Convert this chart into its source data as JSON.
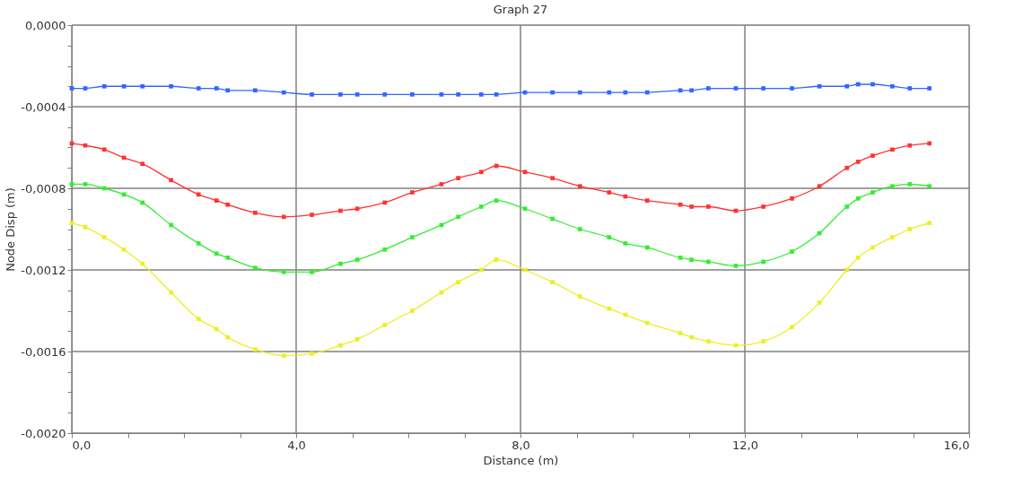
{
  "chart_data": {
    "type": "line",
    "title": "Graph  27",
    "xlabel": "Distance (m)",
    "ylabel": "Node Disp  (m)",
    "x": [
      0,
      0.24,
      0.58,
      0.93,
      1.26,
      1.77,
      2.26,
      2.58,
      2.78,
      3.27,
      3.78,
      4.28,
      4.79,
      5.09,
      5.58,
      6.07,
      6.59,
      6.89,
      7.3,
      7.57,
      8.08,
      8.57,
      9.06,
      9.58,
      9.87,
      10.26,
      10.85,
      11.05,
      11.35,
      11.84,
      12.33,
      12.84,
      13.33,
      13.82,
      14.02,
      14.28,
      14.63,
      14.94,
      15.29
    ],
    "series": [
      {
        "color": "#3366ff",
        "values": [
          -0.00031,
          -0.00031,
          -0.0003,
          -0.0003,
          -0.0003,
          -0.0003,
          -0.00031,
          -0.00031,
          -0.00032,
          -0.00032,
          -0.00033,
          -0.00034,
          -0.00034,
          -0.00034,
          -0.00034,
          -0.00034,
          -0.00034,
          -0.00034,
          -0.00034,
          -0.00034,
          -0.00033,
          -0.00033,
          -0.00033,
          -0.00033,
          -0.00033,
          -0.00033,
          -0.00032,
          -0.00032,
          -0.00031,
          -0.00031,
          -0.00031,
          -0.00031,
          -0.0003,
          -0.0003,
          -0.00029,
          -0.00029,
          -0.0003,
          -0.00031,
          -0.00031
        ]
      },
      {
        "color": "#ff3333",
        "values": [
          -0.00058,
          -0.00059,
          -0.00061,
          -0.00065,
          -0.00068,
          -0.00076,
          -0.00083,
          -0.00086,
          -0.00088,
          -0.00092,
          -0.00094,
          -0.00093,
          -0.00091,
          -0.0009,
          -0.00087,
          -0.00082,
          -0.00078,
          -0.00075,
          -0.00072,
          -0.00069,
          -0.00072,
          -0.00075,
          -0.00079,
          -0.00082,
          -0.00084,
          -0.00086,
          -0.00088,
          -0.00089,
          -0.00089,
          -0.00091,
          -0.00089,
          -0.00085,
          -0.00079,
          -0.0007,
          -0.00067,
          -0.00064,
          -0.00061,
          -0.00059,
          -0.00058
        ]
      },
      {
        "color": "#33ee33",
        "values": [
          -0.00078,
          -0.00078,
          -0.0008,
          -0.00083,
          -0.00087,
          -0.00098,
          -0.00107,
          -0.00112,
          -0.00114,
          -0.00119,
          -0.00121,
          -0.00121,
          -0.00117,
          -0.00115,
          -0.0011,
          -0.00104,
          -0.00098,
          -0.00094,
          -0.00089,
          -0.00086,
          -0.0009,
          -0.00095,
          -0.001,
          -0.00104,
          -0.00107,
          -0.00109,
          -0.00114,
          -0.00115,
          -0.00116,
          -0.00118,
          -0.00116,
          -0.00111,
          -0.00102,
          -0.00089,
          -0.00085,
          -0.00082,
          -0.00079,
          -0.00078,
          -0.00079
        ]
      },
      {
        "color": "#eeee22",
        "values": [
          -0.00097,
          -0.00099,
          -0.00104,
          -0.0011,
          -0.00117,
          -0.00131,
          -0.00144,
          -0.00149,
          -0.00153,
          -0.00159,
          -0.00162,
          -0.00161,
          -0.00157,
          -0.00154,
          -0.00147,
          -0.0014,
          -0.00131,
          -0.00126,
          -0.0012,
          -0.00115,
          -0.0012,
          -0.00126,
          -0.00133,
          -0.00139,
          -0.00142,
          -0.00146,
          -0.00151,
          -0.00153,
          -0.00155,
          -0.00157,
          -0.00155,
          -0.00148,
          -0.00136,
          -0.0012,
          -0.00114,
          -0.00109,
          -0.00104,
          -0.001,
          -0.00097
        ]
      }
    ],
    "xlim": [
      0,
      16
    ],
    "xticks": [
      {
        "value": 0,
        "label": "0,0"
      },
      {
        "value": 1,
        "label": null
      },
      {
        "value": 2,
        "label": null
      },
      {
        "value": 3,
        "label": null
      },
      {
        "value": 4,
        "label": "4,0"
      },
      {
        "value": 5,
        "label": null
      },
      {
        "value": 6,
        "label": null
      },
      {
        "value": 7,
        "label": null
      },
      {
        "value": 8,
        "label": "8,0"
      },
      {
        "value": 9,
        "label": null
      },
      {
        "value": 10,
        "label": null
      },
      {
        "value": 11,
        "label": null
      },
      {
        "value": 12,
        "label": "12,0"
      },
      {
        "value": 13,
        "label": null
      },
      {
        "value": 14,
        "label": null
      },
      {
        "value": 15,
        "label": null
      },
      {
        "value": 16,
        "label": "16,0"
      }
    ],
    "ylim": [
      -0.002,
      0
    ],
    "yticks": [
      {
        "value": 0,
        "label": "0,0000"
      },
      {
        "value": -0.0001,
        "label": null
      },
      {
        "value": -0.0002,
        "label": null
      },
      {
        "value": -0.0003,
        "label": null
      },
      {
        "value": -0.0004,
        "label": "-0,0004"
      },
      {
        "value": -0.0005,
        "label": null
      },
      {
        "value": -0.0006,
        "label": null
      },
      {
        "value": -0.0007,
        "label": null
      },
      {
        "value": -0.0008,
        "label": "-0,0008"
      },
      {
        "value": -0.0009,
        "label": null
      },
      {
        "value": -0.001,
        "label": null
      },
      {
        "value": -0.0011,
        "label": null
      },
      {
        "value": -0.0012,
        "label": "-0,0012"
      },
      {
        "value": -0.0013,
        "label": null
      },
      {
        "value": -0.0014,
        "label": null
      },
      {
        "value": -0.0015,
        "label": null
      },
      {
        "value": -0.0016,
        "label": "-0,0016"
      },
      {
        "value": -0.0017,
        "label": null
      },
      {
        "value": -0.0018,
        "label": null
      },
      {
        "value": -0.0019,
        "label": null
      },
      {
        "value": -0.002,
        "label": "-0,0020"
      }
    ],
    "grid": true,
    "marker": "square",
    "line_style": "solid",
    "legend": false
  }
}
